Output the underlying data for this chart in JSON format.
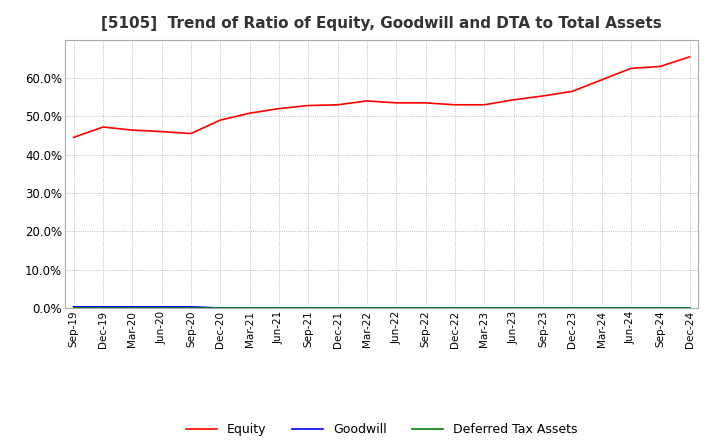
{
  "title": "[5105]  Trend of Ratio of Equity, Goodwill and DTA to Total Assets",
  "title_fontsize": 11,
  "x_labels": [
    "Sep-19",
    "Dec-19",
    "Mar-20",
    "Jun-20",
    "Sep-20",
    "Dec-20",
    "Mar-21",
    "Jun-21",
    "Sep-21",
    "Dec-21",
    "Mar-22",
    "Jun-22",
    "Sep-22",
    "Dec-22",
    "Mar-23",
    "Jun-23",
    "Sep-23",
    "Dec-23",
    "Mar-24",
    "Jun-24",
    "Sep-24",
    "Dec-24"
  ],
  "equity": [
    0.445,
    0.472,
    0.464,
    0.46,
    0.455,
    0.49,
    0.508,
    0.52,
    0.528,
    0.53,
    0.54,
    0.535,
    0.535,
    0.53,
    0.53,
    0.543,
    0.553,
    0.565,
    0.595,
    0.625,
    0.63,
    0.655
  ],
  "goodwill": [
    0.003,
    0.003,
    0.003,
    0.003,
    0.003,
    0.0,
    0.0,
    0.0,
    0.0,
    0.0,
    0.0,
    0.0,
    0.0,
    0.0,
    0.0,
    0.0,
    0.0,
    0.0,
    0.0,
    0.0,
    0.0,
    0.0
  ],
  "dta": [
    0.0,
    0.0,
    0.0,
    0.0,
    0.0,
    0.0,
    0.0,
    0.0,
    0.0,
    0.0,
    0.0,
    0.0,
    0.0,
    0.0,
    0.0,
    0.0,
    0.0,
    0.0,
    0.0,
    0.0,
    0.0,
    0.0
  ],
  "equity_color": "#ff0000",
  "goodwill_color": "#0000ff",
  "dta_color": "#008000",
  "ylim": [
    0.0,
    0.7
  ],
  "yticks": [
    0.0,
    0.1,
    0.2,
    0.3,
    0.4,
    0.5,
    0.6
  ],
  "background_color": "#ffffff",
  "grid_color": "#aaaaaa",
  "line_width": 1.2
}
